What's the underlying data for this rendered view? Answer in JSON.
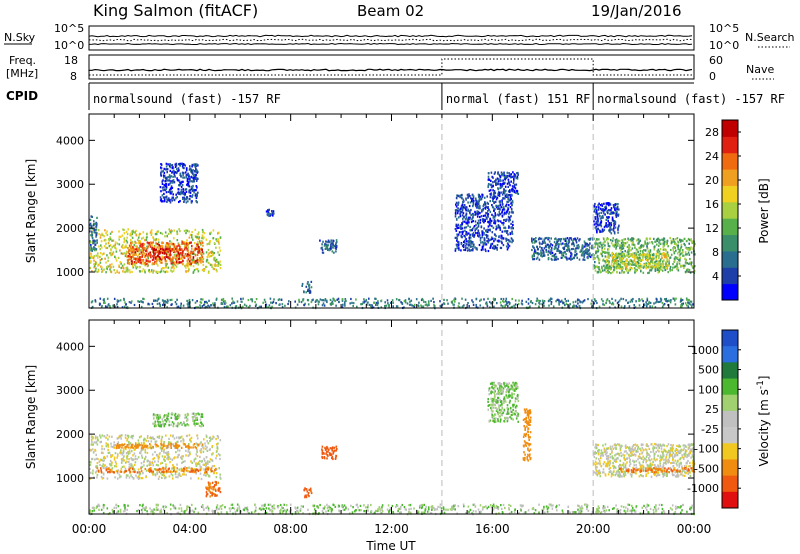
{
  "header": {
    "radar": "King Salmon (fitACF)",
    "beam": "Beam 02",
    "date": "19/Jan/2016"
  },
  "strips": {
    "nsky_label": "N.Sky",
    "nsky_ticks": [
      "10^5",
      "10^0"
    ],
    "nsearch_label": "N.Search",
    "nsearch_ticks": [
      "10^5",
      "10^0"
    ],
    "freq_label_1": "Freq.",
    "freq_label_2": "[MHz]",
    "freq_ticks": [
      "18",
      "8"
    ],
    "nave_label": "Nave",
    "nave_ticks": [
      "60",
      "0"
    ],
    "cpid_label": "CPID",
    "cpid_segments": [
      {
        "label": "normalsound (fast) -157 RF",
        "start_h": 0,
        "end_h": 14.0
      },
      {
        "label": "normal (fast) 151 RF",
        "start_h": 14.0,
        "end_h": 20.0
      },
      {
        "label": "normalsound (fast) -157 RF",
        "start_h": 20.0,
        "end_h": 24
      }
    ]
  },
  "colors": {
    "power_scale": [
      "#0000ff",
      "#1e3fa8",
      "#2a6e8f",
      "#3a8f6a",
      "#58b04a",
      "#a8d040",
      "#f0d020",
      "#f0a020",
      "#f06a10",
      "#e02010",
      "#c00000"
    ],
    "velocity_scale": [
      "#1e4ec8",
      "#2a6ee0",
      "#1f7a3c",
      "#4cb830",
      "#a0d070",
      "#c0c0c0",
      "#c8c8c8",
      "#f0c820",
      "#f08c10",
      "#f05a10",
      "#e01010"
    ]
  },
  "chart_data": [
    {
      "type": "heatmap",
      "title": "Power",
      "xlabel": "Time UT",
      "ylabel": "Slant Range [km]",
      "xlim": [
        0,
        24
      ],
      "ylim": [
        180,
        4600
      ],
      "x_ticks": [
        "00:00",
        "04:00",
        "08:00",
        "12:00",
        "16:00",
        "20:00",
        "00:00"
      ],
      "y_ticks": [
        "1000",
        "2000",
        "3000",
        "4000"
      ],
      "colorbar_label": "Power [dB]",
      "colorbar_ticks": [
        "4",
        "8",
        "12",
        "16",
        "20",
        "24",
        "28"
      ],
      "colorbar_range": [
        0,
        30
      ],
      "vertical_markers_h": [
        14.0,
        20.0
      ],
      "echo_regions": [
        {
          "t_start": 0.0,
          "t_end": 5.2,
          "r_start": 1000,
          "r_end": 2000,
          "level": 16
        },
        {
          "t_start": 1.5,
          "t_end": 4.5,
          "r_start": 1200,
          "r_end": 1700,
          "level": 24
        },
        {
          "t_start": 2.5,
          "t_end": 3.3,
          "r_start": 1350,
          "r_end": 1550,
          "level": 28
        },
        {
          "t_start": 0.0,
          "t_end": 0.3,
          "r_start": 1500,
          "r_end": 2300,
          "level": 6
        },
        {
          "t_start": 2.8,
          "t_end": 4.3,
          "r_start": 2600,
          "r_end": 3500,
          "level": 4
        },
        {
          "t_start": 9.1,
          "t_end": 9.8,
          "r_start": 1450,
          "r_end": 1750,
          "level": 6
        },
        {
          "t_start": 8.4,
          "t_end": 8.8,
          "r_start": 550,
          "r_end": 800,
          "level": 6
        },
        {
          "t_start": 7.0,
          "t_end": 7.3,
          "r_start": 2300,
          "r_end": 2450,
          "level": 4
        },
        {
          "t_start": 14.5,
          "t_end": 16.8,
          "r_start": 1500,
          "r_end": 2800,
          "level": 4
        },
        {
          "t_start": 15.8,
          "t_end": 17.0,
          "r_start": 2800,
          "r_end": 3300,
          "level": 4
        },
        {
          "t_start": 17.5,
          "t_end": 20.0,
          "r_start": 1300,
          "r_end": 1800,
          "level": 6
        },
        {
          "t_start": 20.0,
          "t_end": 24.0,
          "r_start": 1000,
          "r_end": 1800,
          "level": 12
        },
        {
          "t_start": 20.5,
          "t_end": 23.0,
          "r_start": 1100,
          "r_end": 1450,
          "level": 16
        },
        {
          "t_start": 20.0,
          "t_end": 21.0,
          "r_start": 1900,
          "r_end": 2600,
          "level": 4
        },
        {
          "t_start": 0.0,
          "t_end": 24.0,
          "r_start": 200,
          "r_end": 420,
          "level": 8
        }
      ]
    },
    {
      "type": "heatmap",
      "title": "Velocity",
      "xlabel": "Time UT",
      "ylabel": "Slant Range [km]",
      "xlim": [
        0,
        24
      ],
      "ylim": [
        180,
        4600
      ],
      "x_ticks": [
        "00:00",
        "04:00",
        "08:00",
        "12:00",
        "16:00",
        "20:00",
        "00:00"
      ],
      "y_ticks": [
        "1000",
        "2000",
        "3000",
        "4000"
      ],
      "colorbar_label": "Velocity [m s^-1]",
      "colorbar_ticks": [
        "1000",
        "500",
        "100",
        "25",
        "-25",
        "-100",
        "-500",
        "-1000"
      ],
      "vertical_markers_h": [
        14.0,
        20.0
      ],
      "echo_regions": [
        {
          "t_start": 0.0,
          "t_end": 5.2,
          "r_start": 1000,
          "r_end": 2000,
          "v": 0
        },
        {
          "t_start": 0.3,
          "t_end": 5.0,
          "r_start": 1150,
          "r_end": 1250,
          "v": -300
        },
        {
          "t_start": 1.0,
          "t_end": 4.5,
          "r_start": 1700,
          "r_end": 1800,
          "v": -150
        },
        {
          "t_start": 2.5,
          "t_end": 4.5,
          "r_start": 2200,
          "r_end": 2500,
          "v": 60
        },
        {
          "t_start": 4.6,
          "t_end": 5.2,
          "r_start": 600,
          "r_end": 950,
          "v": -300
        },
        {
          "t_start": 9.2,
          "t_end": 9.8,
          "r_start": 1450,
          "r_end": 1750,
          "v": -400
        },
        {
          "t_start": 8.5,
          "t_end": 8.8,
          "r_start": 550,
          "r_end": 800,
          "v": -350
        },
        {
          "t_start": 15.8,
          "t_end": 17.0,
          "r_start": 2300,
          "r_end": 3200,
          "v": 60
        },
        {
          "t_start": 17.2,
          "t_end": 17.5,
          "r_start": 1400,
          "r_end": 2600,
          "v": -200
        },
        {
          "t_start": 20.0,
          "t_end": 24.0,
          "r_start": 1050,
          "r_end": 1800,
          "v": 0
        },
        {
          "t_start": 21.0,
          "t_end": 24.0,
          "r_start": 1150,
          "r_end": 1250,
          "v": -300
        },
        {
          "t_start": 0.0,
          "t_end": 24.0,
          "r_start": 200,
          "r_end": 420,
          "v": 40
        }
      ]
    }
  ]
}
